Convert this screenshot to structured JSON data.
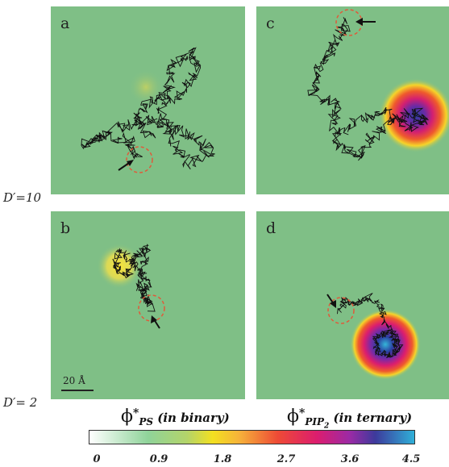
{
  "panels": {
    "a": {
      "letter": "a"
    },
    "b": {
      "letter": "b"
    },
    "c": {
      "letter": "c"
    },
    "d": {
      "letter": "d"
    }
  },
  "row_labels": {
    "top": "D′=10",
    "bottom": "D′= 2"
  },
  "scale_bar": {
    "label": "20 Å"
  },
  "colorbar": {
    "title_left": {
      "symbol": "ϕ",
      "sup": "*",
      "sub": "PS",
      "rest": " (in binary)"
    },
    "title_right": {
      "symbol": "ϕ",
      "sup": "*",
      "sub": "PIP",
      "sub2": "2",
      "rest": " (in ternary)"
    },
    "ticks": [
      "0",
      "0.9",
      "1.8",
      "2.7",
      "3.6",
      "4.5"
    ]
  },
  "colors": {
    "background": "#7fbf86",
    "trajectory": "#111111",
    "circle": "#e05a3a",
    "arrow": "#111111"
  }
}
